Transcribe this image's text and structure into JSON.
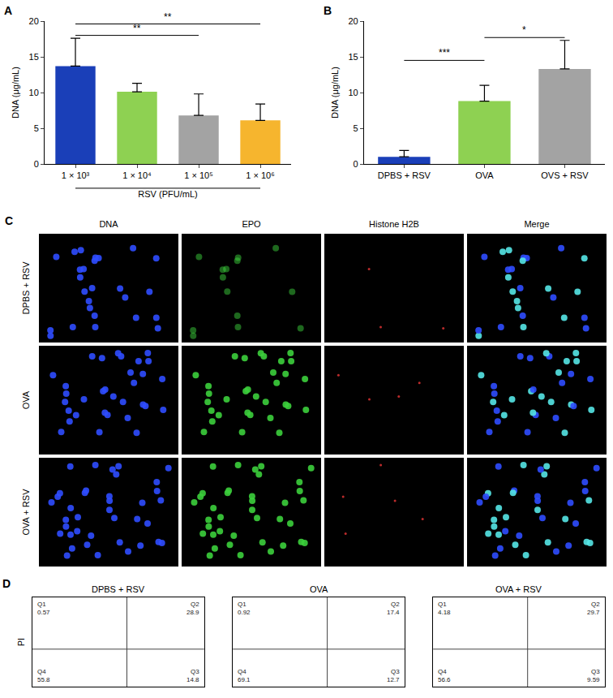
{
  "chart_data": [
    {
      "type": "bar",
      "panel": "A",
      "categories": [
        "1 × 10³",
        "1 × 10⁴",
        "1 × 10⁵",
        "1 × 10⁶"
      ],
      "values": [
        13.7,
        10.1,
        6.8,
        6.1
      ],
      "errors": [
        3.9,
        1.2,
        3.0,
        2.3
      ],
      "colors": [
        "#1a3fb8",
        "#8ed152",
        "#a3a3a3",
        "#f6b52e"
      ],
      "xlabel": "RSV (PFU/mL)",
      "ylabel": "DNA (μg/mL)",
      "ylim": [
        0,
        20
      ],
      "yticks": [
        0,
        5,
        10,
        15,
        20
      ],
      "grid": false,
      "annotations": [
        {
          "text": "**",
          "from": "1 × 10³",
          "to": "1 × 10⁵",
          "y": 18.0
        },
        {
          "text": "**",
          "from": "1 × 10³",
          "to": "1 × 10⁶",
          "y": 19.6
        }
      ]
    },
    {
      "type": "bar",
      "panel": "B",
      "categories": [
        "DPBS + RSV",
        "OVA",
        "OVS + RSV"
      ],
      "values": [
        1.0,
        8.8,
        13.3
      ],
      "errors": [
        0.9,
        2.2,
        4.0
      ],
      "colors": [
        "#1a3fb8",
        "#8ed152",
        "#a3a3a3"
      ],
      "ylabel": "DNA (μg/mL)",
      "ylim": [
        0,
        20
      ],
      "yticks": [
        0,
        5,
        10,
        15,
        20
      ],
      "grid": false,
      "annotations": [
        {
          "text": "***",
          "from": "DPBS + RSV",
          "to": "OVA",
          "y": 14.5
        },
        {
          "text": "*",
          "from": "OVA",
          "to": "OVS + RSV",
          "y": 17.7
        }
      ]
    }
  ],
  "panel_c": {
    "label": "C",
    "columns": [
      "DNA",
      "EPO",
      "Histone H2B",
      "Merge"
    ],
    "rows": [
      "DPBS + RSV",
      "OVA",
      "OVA + RSV"
    ]
  },
  "panel_d": {
    "label": "D",
    "type": "contour",
    "ylabel": "PI",
    "tick_labels": false,
    "plots": [
      {
        "title": "DPBS + RSV",
        "quadrants": [
          {
            "name": "Q1",
            "value": 0.57
          },
          {
            "name": "Q2",
            "value": 28.9
          },
          {
            "name": "Q3",
            "value": 14.8
          },
          {
            "name": "Q4",
            "value": 55.8
          }
        ]
      },
      {
        "title": "OVA",
        "quadrants": [
          {
            "name": "Q1",
            "value": 0.92
          },
          {
            "name": "Q2",
            "value": 17.4
          },
          {
            "name": "Q3",
            "value": 12.7
          },
          {
            "name": "Q4",
            "value": 69.1
          }
        ]
      },
      {
        "title": "OVA + RSV",
        "quadrants": [
          {
            "name": "Q1",
            "value": 4.18
          },
          {
            "name": "Q2",
            "value": 29.7
          },
          {
            "name": "Q3",
            "value": 9.59
          },
          {
            "name": "Q4",
            "value": 56.6
          }
        ]
      }
    ]
  }
}
